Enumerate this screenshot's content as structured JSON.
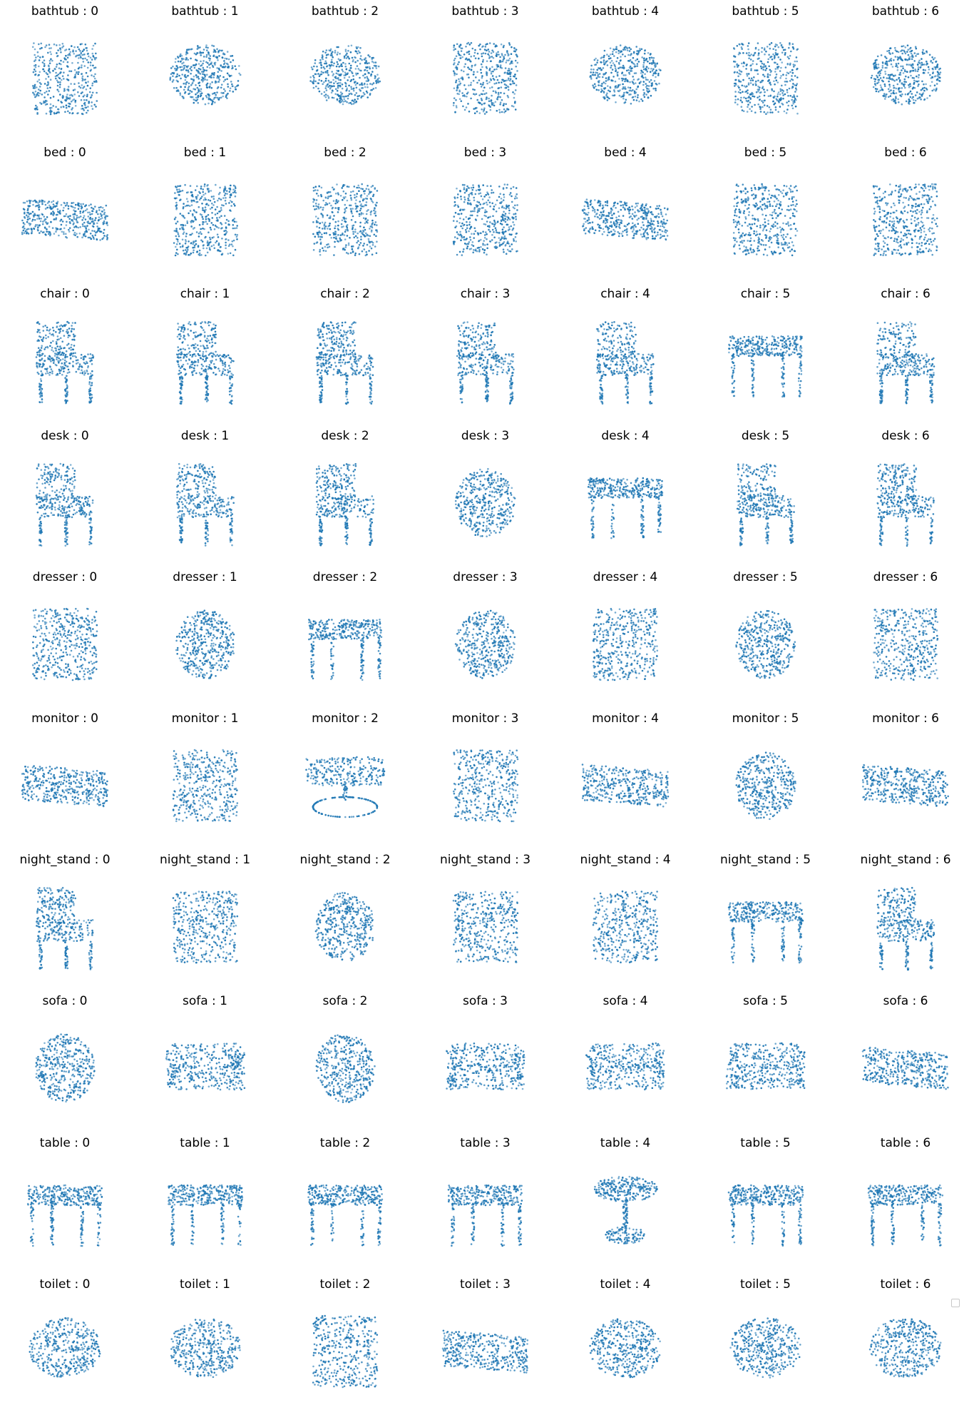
{
  "figure": {
    "point_color": "#1f77b4",
    "background": "#ffffff",
    "separator": " : ",
    "indices": [
      0,
      1,
      2,
      3,
      4,
      5,
      6
    ],
    "classes": [
      "bathtub",
      "bed",
      "chair",
      "desk",
      "dresser",
      "monitor",
      "night_stand",
      "sofa",
      "table",
      "toilet"
    ],
    "shapes": {
      "bathtub": [
        "box",
        "bowl",
        "bowl",
        "box",
        "bowl",
        "box",
        "bowl"
      ],
      "bed": [
        "flat",
        "box",
        "box",
        "box",
        "flat",
        "box",
        "box"
      ],
      "chair": [
        "chair",
        "chair",
        "chair",
        "chair",
        "chair",
        "table",
        "chair"
      ],
      "desk": [
        "chair",
        "chair",
        "chair",
        "blob",
        "table",
        "chair",
        "chair"
      ],
      "dresser": [
        "box",
        "blob",
        "table",
        "blob",
        "box",
        "blob",
        "box"
      ],
      "monitor": [
        "flat",
        "box",
        "monitor",
        "box",
        "flat",
        "blob",
        "flat"
      ],
      "night_stand": [
        "chair",
        "box",
        "blob",
        "box",
        "box",
        "table",
        "chair"
      ],
      "sofa": [
        "blob",
        "sofa",
        "blob",
        "sofa",
        "sofa",
        "sofa",
        "flat"
      ],
      "table": [
        "table",
        "table",
        "table",
        "table",
        "pedestal",
        "table",
        "table"
      ],
      "toilet": [
        "bowl",
        "bowl",
        "box",
        "flat",
        "bowl",
        "bowl",
        "bowl"
      ]
    }
  },
  "legend": {
    "present": true
  }
}
